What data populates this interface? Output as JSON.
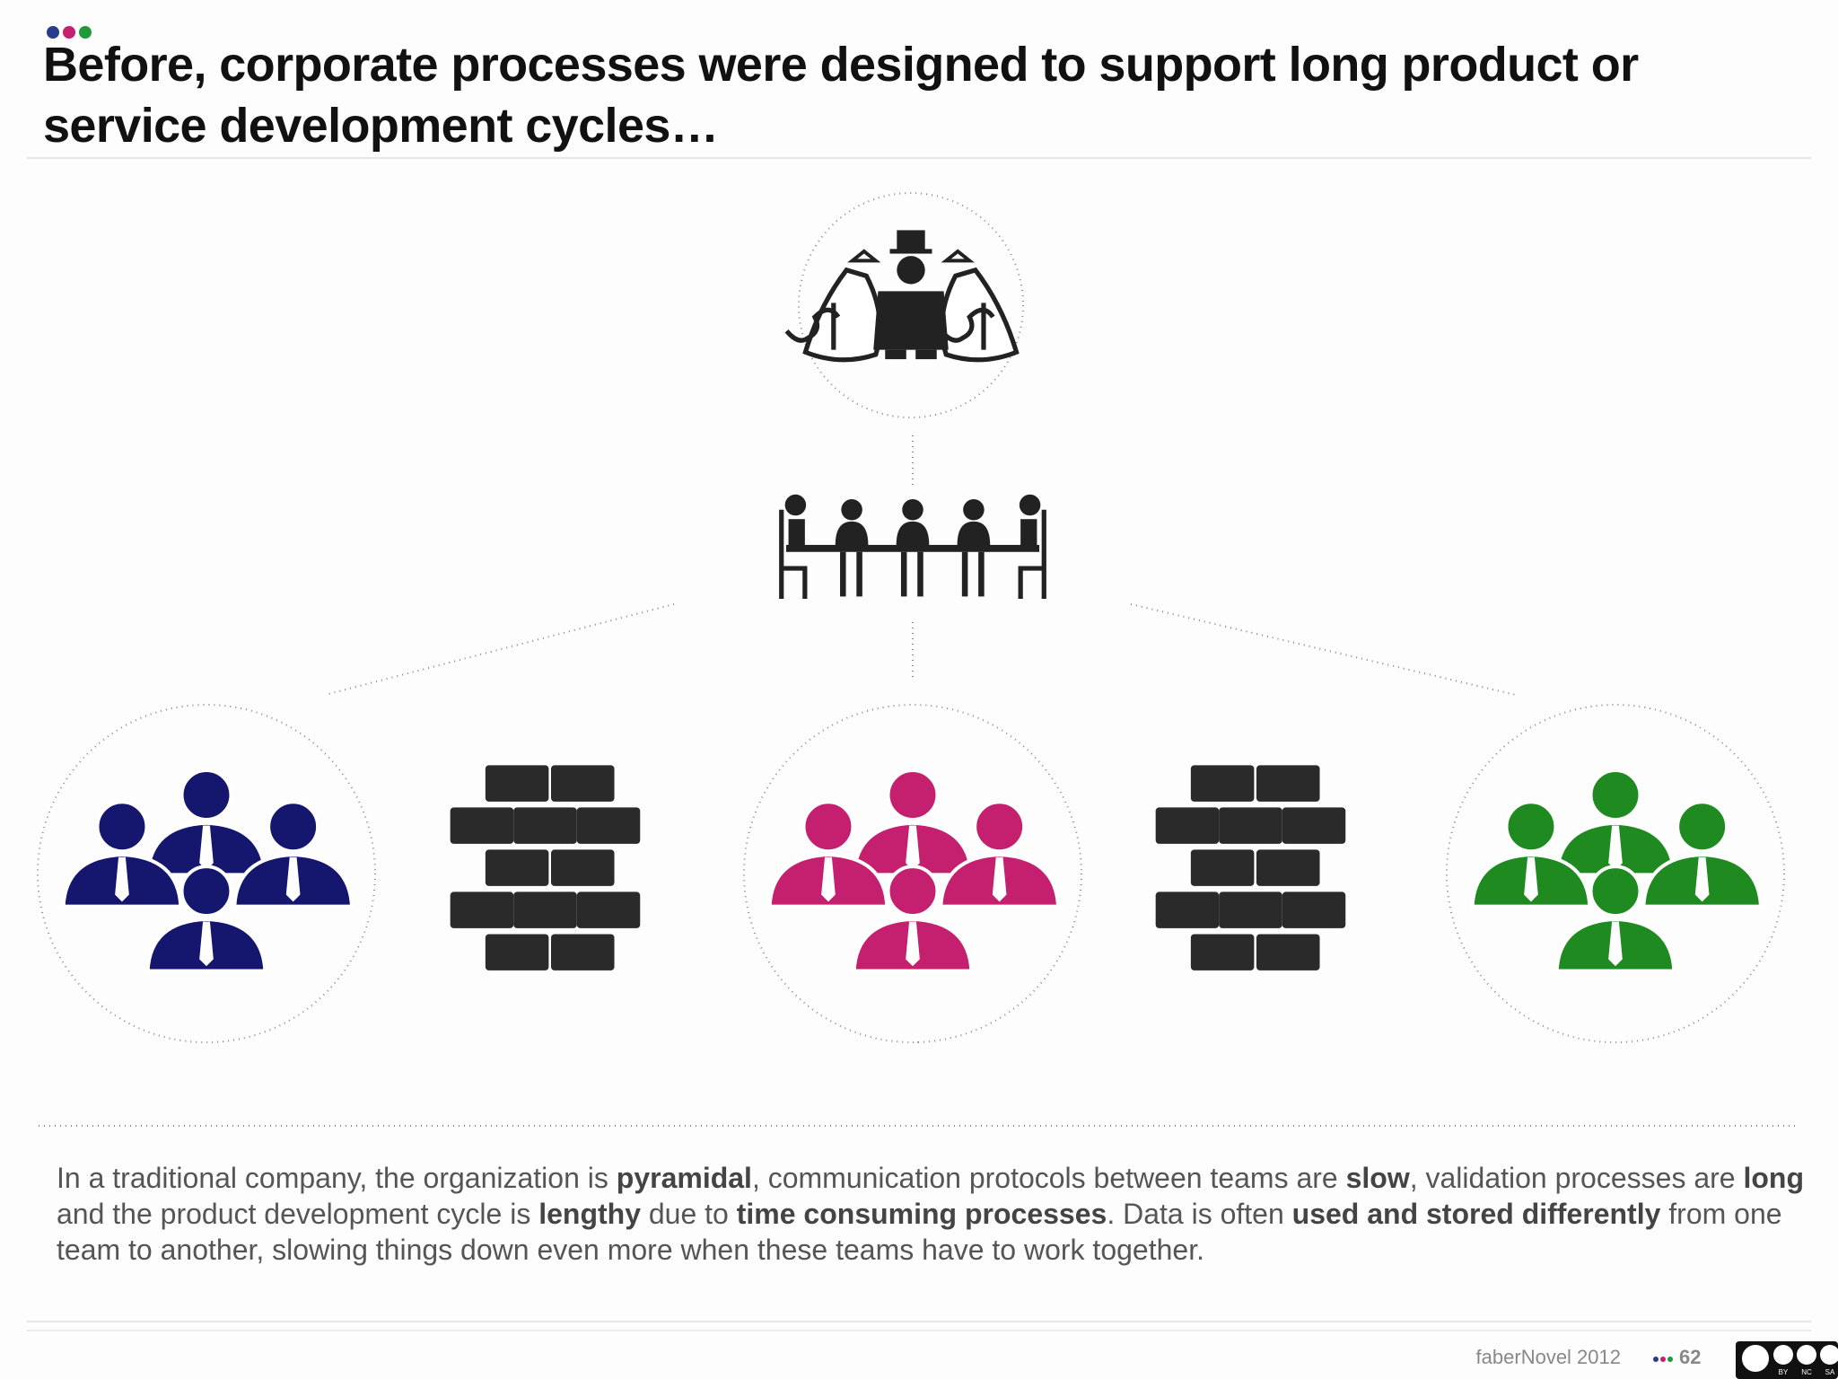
{
  "header": {
    "title": "Before, corporate processes were designed to support long product or service development cycles…"
  },
  "diagram": {
    "groups": [
      {
        "color": "#15166e"
      },
      {
        "color": "#c4206f"
      },
      {
        "color": "#1f8a1f"
      }
    ]
  },
  "body": {
    "segments": [
      {
        "text": "In a traditional company, the organization is ",
        "bold": false
      },
      {
        "text": "pyramidal",
        "bold": true
      },
      {
        "text": ", communication protocols between teams are ",
        "bold": false
      },
      {
        "text": "slow",
        "bold": true
      },
      {
        "text": ", validation processes are ",
        "bold": false
      },
      {
        "text": "long",
        "bold": true
      },
      {
        "text": " and the product development cycle is ",
        "bold": false
      },
      {
        "text": "lengthy",
        "bold": true
      },
      {
        "text": " due to ",
        "bold": false
      },
      {
        "text": "time consuming processes",
        "bold": true
      },
      {
        "text": ". Data is often ",
        "bold": false
      },
      {
        "text": "used and stored differently",
        "bold": true
      },
      {
        "text": " from one team to another, slowing things down even more when these teams have to work together.",
        "bold": false
      }
    ]
  },
  "footer": {
    "credit": "faberNovel 2012",
    "page": "62",
    "license": [
      "BY",
      "NC",
      "SA"
    ]
  }
}
